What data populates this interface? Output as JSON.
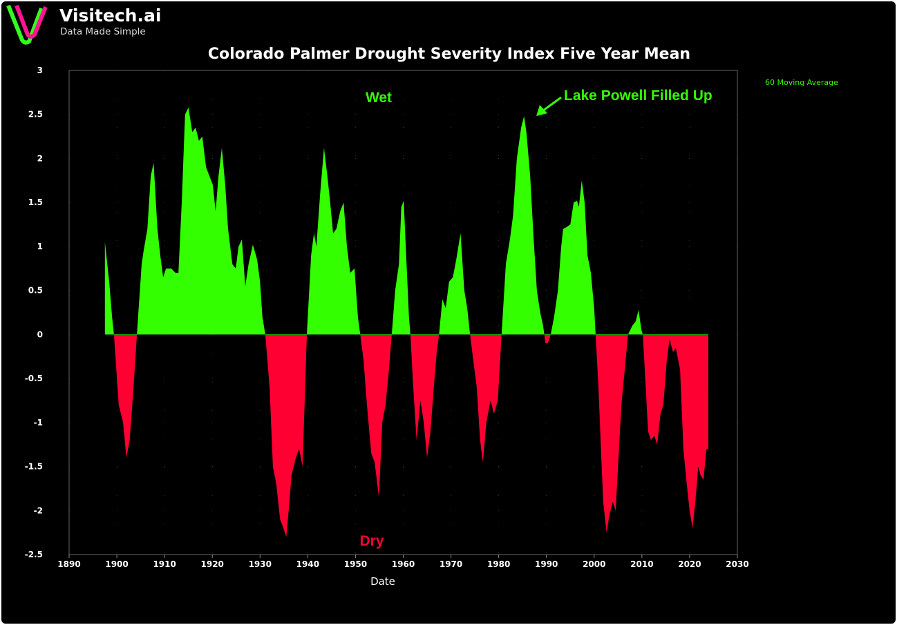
{
  "logo": {
    "name": "Visitech.ai",
    "tagline": "Data Made Simple"
  },
  "chart_data": {
    "type": "area",
    "title": "Colorado Palmer Drought Severity Index Five Year Mean",
    "xlabel": "Date",
    "ylabel": "",
    "xlim": [
      1890,
      2030
    ],
    "ylim": [
      -2.5,
      3
    ],
    "xticks": [
      1890,
      1900,
      1910,
      1920,
      1930,
      1940,
      1950,
      1960,
      1970,
      1980,
      1990,
      2000,
      2010,
      2020,
      2030
    ],
    "yticks": [
      3,
      2.5,
      2,
      1.5,
      1,
      0.5,
      0,
      -0.5,
      -1,
      -1.5,
      -2,
      -2.5
    ],
    "grid": true,
    "legend": {
      "entries": [
        "60 Moving Average"
      ],
      "placement": "top-right outside"
    },
    "colors": {
      "positive": "#33ff00",
      "negative": "#ff0033",
      "background": "#000000"
    },
    "annotations": {
      "wet": "Wet",
      "dry": "Dry",
      "lake_powell": "Lake Powell Filled Up"
    },
    "x": [
      1897.5,
      1898.4,
      1899.0,
      1899.4,
      1900.4,
      1901.3,
      1902.0,
      1902.7,
      1903.5,
      1904.2,
      1905.2,
      1905.6,
      1906.4,
      1907.1,
      1907.7,
      1908.5,
      1909.1,
      1909.7,
      1910.3,
      1911.4,
      1912.3,
      1912.9,
      1913.6,
      1914.3,
      1915.0,
      1915.8,
      1916.5,
      1917.2,
      1917.9,
      1918.7,
      1919.4,
      1920.1,
      1920.7,
      1921.3,
      1922.0,
      1922.7,
      1923.3,
      1924.2,
      1924.9,
      1925.5,
      1926.2,
      1926.9,
      1927.6,
      1928.5,
      1929.4,
      1930.0,
      1930.5,
      1931.1,
      1932.0,
      1932.7,
      1933.4,
      1934.2,
      1934.9,
      1935.5,
      1936.0,
      1936.6,
      1937.5,
      1938.2,
      1938.9,
      1939.8,
      1940.7,
      1941.3,
      1941.8,
      1942.6,
      1943.4,
      1944.1,
      1944.7,
      1945.3,
      1946.0,
      1946.8,
      1947.5,
      1948.2,
      1948.9,
      1949.8,
      1950.5,
      1951.0,
      1951.7,
      1952.4,
      1953.3,
      1954.0,
      1954.9,
      1955.6,
      1956.3,
      1957.0,
      1957.6,
      1958.3,
      1959.1,
      1959.6,
      1960.1,
      1960.7,
      1961.2,
      1961.5,
      1962.1,
      1962.8,
      1963.6,
      1964.3,
      1965.0,
      1965.7,
      1966.4,
      1967.0,
      1967.5,
      1968.2,
      1968.9,
      1969.6,
      1970.4,
      1971.1,
      1972.0,
      1972.8,
      1973.4,
      1974.0,
      1974.7,
      1975.4,
      1976.1,
      1976.7,
      1977.4,
      1978.3,
      1979.0,
      1979.8,
      1980.6,
      1981.5,
      1982.4,
      1983.0,
      1983.8,
      1984.7,
      1985.3,
      1985.8,
      1986.6,
      1987.3,
      1988.0,
      1988.7,
      1989.3,
      1989.8,
      1990.3,
      1990.9,
      1991.6,
      1992.4,
      1993.1,
      1993.5,
      1994.2,
      1995.0,
      1995.7,
      1996.4,
      1996.8,
      1997.4,
      1998.0,
      1998.6,
      1999.3,
      2000.0,
      2000.3,
      2000.9,
      2001.5,
      2001.9,
      2002.6,
      2003.2,
      2003.9,
      2004.5,
      2005.1,
      2005.7,
      2006.4,
      2007.1,
      2008.0,
      2008.7,
      2009.3,
      2009.9,
      2010.2,
      2010.8,
      2011.3,
      2011.9,
      2012.6,
      2013.2,
      2013.9,
      2014.5,
      2015.2,
      2015.8,
      2016.5,
      2017.1,
      2018.0,
      2018.7,
      2019.4,
      2020.0,
      2020.6,
      2021.2,
      2021.8,
      2022.3,
      2022.9,
      2023.5,
      2023.9
    ],
    "values": [
      1.05,
      0.6,
      0.2,
      0,
      -0.8,
      -1.0,
      -1.4,
      -1.2,
      -0.6,
      0,
      0.8,
      0.95,
      1.2,
      1.8,
      1.95,
      1.2,
      0.9,
      0.65,
      0.75,
      0.75,
      0.7,
      0.7,
      1.5,
      2.5,
      2.58,
      2.3,
      2.35,
      2.2,
      2.25,
      1.9,
      1.8,
      1.7,
      1.4,
      1.8,
      2.12,
      1.7,
      1.2,
      0.8,
      0.75,
      1.0,
      1.08,
      0.55,
      0.8,
      1.02,
      0.85,
      0.6,
      0.2,
      0,
      -0.6,
      -1.5,
      -1.7,
      -2.1,
      -2.2,
      -2.3,
      -2.0,
      -1.6,
      -1.4,
      -1.3,
      -1.5,
      0,
      0.9,
      1.15,
      1.0,
      1.6,
      2.12,
      1.8,
      1.5,
      1.15,
      1.2,
      1.4,
      1.5,
      1.0,
      0.7,
      0.75,
      0.2,
      0,
      -0.3,
      -0.8,
      -1.35,
      -1.45,
      -1.85,
      -1.0,
      -0.8,
      -0.4,
      0,
      0.5,
      0.8,
      1.45,
      1.52,
      0.8,
      0.2,
      0,
      -0.6,
      -1.2,
      -0.75,
      -1.0,
      -1.4,
      -1.1,
      -0.6,
      -0.2,
      0,
      0.4,
      0.3,
      0.6,
      0.65,
      0.85,
      1.15,
      0.5,
      0.3,
      0,
      -0.3,
      -0.6,
      -1.2,
      -1.45,
      -1.0,
      -0.75,
      -0.9,
      -0.75,
      0,
      0.8,
      1.1,
      1.35,
      2.0,
      2.35,
      2.48,
      2.3,
      1.8,
      1.1,
      0.5,
      0.25,
      0.1,
      -0.1,
      -0.1,
      0,
      0.2,
      0.5,
      1.0,
      1.2,
      1.22,
      1.25,
      1.5,
      1.52,
      1.45,
      1.75,
      1.5,
      0.9,
      0.7,
      0.3,
      0,
      -0.6,
      -1.4,
      -1.9,
      -2.25,
      -2.05,
      -1.9,
      -2.0,
      -1.4,
      -0.8,
      -0.4,
      0,
      0.1,
      0.15,
      0.28,
      0.05,
      0,
      -0.6,
      -1.1,
      -1.2,
      -1.15,
      -1.25,
      -0.9,
      -0.8,
      -0.3,
      -0.05,
      -0.2,
      -0.15,
      -0.4,
      -1.3,
      -1.7,
      -2.0,
      -2.2,
      -1.9,
      -1.5,
      -1.6,
      -1.65,
      -1.3,
      -1.3
    ]
  }
}
